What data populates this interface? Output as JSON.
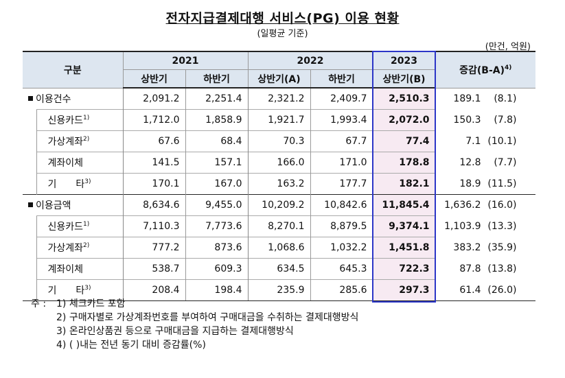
{
  "title": "전자지급결제대행 서비스(PG) 이용 현황",
  "subtitle": "(일평균 기준)",
  "unit": "(만건, 억원)",
  "header": {
    "category": "구분",
    "years": [
      "2021",
      "2022",
      "2023"
    ],
    "halves": [
      "상반기",
      "하반기",
      "상반기(A)",
      "하반기",
      "상반기(B)"
    ],
    "change": "증감(B-A)",
    "change_note": "4)"
  },
  "groups": [
    {
      "label": "이용건수",
      "values": [
        "2,091.2",
        "2,251.4",
        "2,321.2",
        "2,409.7",
        "2,510.3"
      ],
      "diff": "189.1",
      "pct": "(8.1)",
      "rows": [
        {
          "label": "신용카드",
          "note": "1)",
          "values": [
            "1,712.0",
            "1,858.9",
            "1,921.7",
            "1,993.4",
            "2,072.0"
          ],
          "diff": "150.3",
          "pct": "(7.8)"
        },
        {
          "label": "가상계좌",
          "note": "2)",
          "values": [
            "67.6",
            "68.4",
            "70.3",
            "67.7",
            "77.4"
          ],
          "diff": "7.1",
          "pct": "(10.1)"
        },
        {
          "label": "계좌이체",
          "note": "",
          "values": [
            "141.5",
            "157.1",
            "166.0",
            "171.0",
            "178.8"
          ],
          "diff": "12.8",
          "pct": "(7.7)"
        },
        {
          "label": "기　　타",
          "note": "3)",
          "values": [
            "170.1",
            "167.0",
            "163.2",
            "177.7",
            "182.1"
          ],
          "diff": "18.9",
          "pct": "(11.5)"
        }
      ]
    },
    {
      "label": "이용금액",
      "values": [
        "8,634.6",
        "9,455.0",
        "10,209.2",
        "10,842.6",
        "11,845.4"
      ],
      "diff": "1,636.2",
      "pct": "(16.0)",
      "rows": [
        {
          "label": "신용카드",
          "note": "1)",
          "values": [
            "7,110.3",
            "7,773.6",
            "8,270.1",
            "8,879.5",
            "9,374.1"
          ],
          "diff": "1,103.9",
          "pct": "(13.3)"
        },
        {
          "label": "가상계좌",
          "note": "2)",
          "values": [
            "777.2",
            "873.6",
            "1,068.6",
            "1,032.2",
            "1,451.8"
          ],
          "diff": "383.2",
          "pct": "(35.9)"
        },
        {
          "label": "계좌이체",
          "note": "",
          "values": [
            "538.7",
            "609.3",
            "634.5",
            "645.3",
            "722.3"
          ],
          "diff": "87.8",
          "pct": "(13.8)"
        },
        {
          "label": "기　　타",
          "note": "3)",
          "values": [
            "208.4",
            "198.4",
            "235.9",
            "285.6",
            "297.3"
          ],
          "diff": "61.4",
          "pct": "(26.0)"
        }
      ]
    }
  ],
  "notes": {
    "lead": "주 :",
    "items": [
      "1) 체크카드 포함",
      "2) 구매자별로 가상계좌번호를 부여하여 구매대금을 수취하는 결제대행방식",
      "3) 온라인상품권 등으로 구매대금을 지급하는 결제대행방식",
      "4) ( )내는 전년 동기 대비 증감률(%)"
    ]
  },
  "colors": {
    "header_bg": "#dde6f0",
    "highlight_bg": "#f7eaf2",
    "highlight_border": "#2b35c7"
  }
}
